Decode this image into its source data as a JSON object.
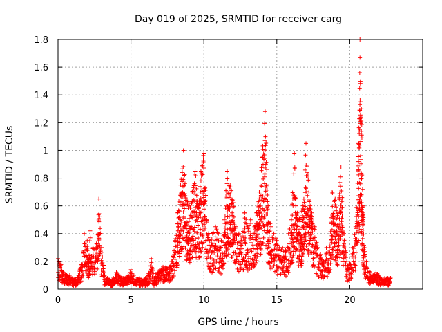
{
  "chart_data": {
    "type": "scatter",
    "title": "Day 019 of 2025, SRMTID for receiver carg",
    "xlabel": "GPS time / hours",
    "ylabel": "SRMTID / TECUs",
    "xlim": [
      0,
      25
    ],
    "ylim": [
      0,
      1.8
    ],
    "xticks": [
      0,
      5,
      10,
      15,
      20
    ],
    "xtick_labels": [
      "0",
      "5",
      "10",
      "15",
      "20"
    ],
    "yticks": [
      0,
      0.2,
      0.4,
      0.6,
      0.8,
      1.0,
      1.2,
      1.4,
      1.6,
      1.8
    ],
    "ytick_labels": [
      "0",
      "0.2",
      "0.4",
      "0.6",
      "0.8",
      "1",
      "1.2",
      "1.4",
      "1.6",
      "1.8"
    ],
    "grid": true,
    "marker": "+",
    "marker_color": "#ff0000",
    "envelope_note": "Dense per-sample scatter; values below approximate the upper envelope (x = hour, y = typical peak) and are rendered as clusters of + markers",
    "series": [
      {
        "name": "SRMTID",
        "points": [
          [
            0.0,
            0.22
          ],
          [
            0.2,
            0.18
          ],
          [
            0.4,
            0.12
          ],
          [
            0.6,
            0.1
          ],
          [
            0.8,
            0.1
          ],
          [
            1.0,
            0.08
          ],
          [
            1.2,
            0.07
          ],
          [
            1.4,
            0.1
          ],
          [
            1.6,
            0.18
          ],
          [
            1.8,
            0.4
          ],
          [
            2.0,
            0.35
          ],
          [
            2.1,
            0.2
          ],
          [
            2.2,
            0.42
          ],
          [
            2.4,
            0.3
          ],
          [
            2.6,
            0.3
          ],
          [
            2.8,
            0.65
          ],
          [
            3.0,
            0.3
          ],
          [
            3.2,
            0.1
          ],
          [
            3.4,
            0.08
          ],
          [
            3.6,
            0.06
          ],
          [
            3.8,
            0.08
          ],
          [
            4.0,
            0.12
          ],
          [
            4.2,
            0.1
          ],
          [
            4.4,
            0.08
          ],
          [
            4.6,
            0.08
          ],
          [
            4.8,
            0.1
          ],
          [
            5.0,
            0.14
          ],
          [
            5.2,
            0.1
          ],
          [
            5.4,
            0.07
          ],
          [
            5.6,
            0.08
          ],
          [
            5.8,
            0.06
          ],
          [
            6.0,
            0.08
          ],
          [
            6.2,
            0.1
          ],
          [
            6.4,
            0.22
          ],
          [
            6.6,
            0.08
          ],
          [
            6.8,
            0.12
          ],
          [
            7.0,
            0.14
          ],
          [
            7.2,
            0.16
          ],
          [
            7.4,
            0.16
          ],
          [
            7.6,
            0.14
          ],
          [
            7.8,
            0.2
          ],
          [
            8.0,
            0.35
          ],
          [
            8.2,
            0.55
          ],
          [
            8.4,
            0.75
          ],
          [
            8.6,
            1.0
          ],
          [
            8.8,
            0.65
          ],
          [
            9.0,
            0.6
          ],
          [
            9.2,
            0.7
          ],
          [
            9.4,
            0.85
          ],
          [
            9.6,
            0.6
          ],
          [
            9.8,
            0.85
          ],
          [
            10.0,
            0.98
          ],
          [
            10.2,
            0.5
          ],
          [
            10.4,
            0.35
          ],
          [
            10.6,
            0.4
          ],
          [
            10.8,
            0.45
          ],
          [
            11.0,
            0.4
          ],
          [
            11.2,
            0.35
          ],
          [
            11.4,
            0.5
          ],
          [
            11.6,
            0.85
          ],
          [
            11.8,
            0.75
          ],
          [
            12.0,
            0.65
          ],
          [
            12.2,
            0.45
          ],
          [
            12.4,
            0.4
          ],
          [
            12.6,
            0.35
          ],
          [
            12.8,
            0.55
          ],
          [
            13.0,
            0.45
          ],
          [
            13.2,
            0.5
          ],
          [
            13.4,
            0.4
          ],
          [
            13.6,
            0.55
          ],
          [
            13.8,
            0.7
          ],
          [
            14.0,
            0.95
          ],
          [
            14.2,
            1.28
          ],
          [
            14.4,
            0.6
          ],
          [
            14.6,
            0.45
          ],
          [
            14.8,
            0.4
          ],
          [
            15.0,
            0.35
          ],
          [
            15.2,
            0.3
          ],
          [
            15.4,
            0.3
          ],
          [
            15.6,
            0.28
          ],
          [
            15.8,
            0.4
          ],
          [
            16.0,
            0.5
          ],
          [
            16.2,
            0.98
          ],
          [
            16.4,
            0.55
          ],
          [
            16.6,
            0.5
          ],
          [
            16.8,
            0.6
          ],
          [
            17.0,
            1.05
          ],
          [
            17.2,
            0.7
          ],
          [
            17.4,
            0.55
          ],
          [
            17.6,
            0.45
          ],
          [
            17.8,
            0.3
          ],
          [
            18.0,
            0.25
          ],
          [
            18.2,
            0.2
          ],
          [
            18.4,
            0.3
          ],
          [
            18.6,
            0.3
          ],
          [
            18.8,
            0.7
          ],
          [
            19.0,
            0.65
          ],
          [
            19.2,
            0.55
          ],
          [
            19.4,
            0.88
          ],
          [
            19.6,
            0.4
          ],
          [
            19.8,
            0.2
          ],
          [
            20.0,
            0.18
          ],
          [
            20.2,
            0.3
          ],
          [
            20.4,
            0.45
          ],
          [
            20.6,
            1.05
          ],
          [
            20.7,
            1.8
          ],
          [
            20.8,
            1.3
          ],
          [
            20.9,
            0.6
          ],
          [
            21.0,
            0.3
          ],
          [
            21.2,
            0.15
          ],
          [
            21.4,
            0.12
          ],
          [
            21.6,
            0.1
          ],
          [
            21.8,
            0.12
          ],
          [
            22.0,
            0.1
          ],
          [
            22.2,
            0.07
          ],
          [
            22.4,
            0.08
          ],
          [
            22.6,
            0.08
          ],
          [
            22.8,
            0.08
          ]
        ]
      }
    ]
  }
}
